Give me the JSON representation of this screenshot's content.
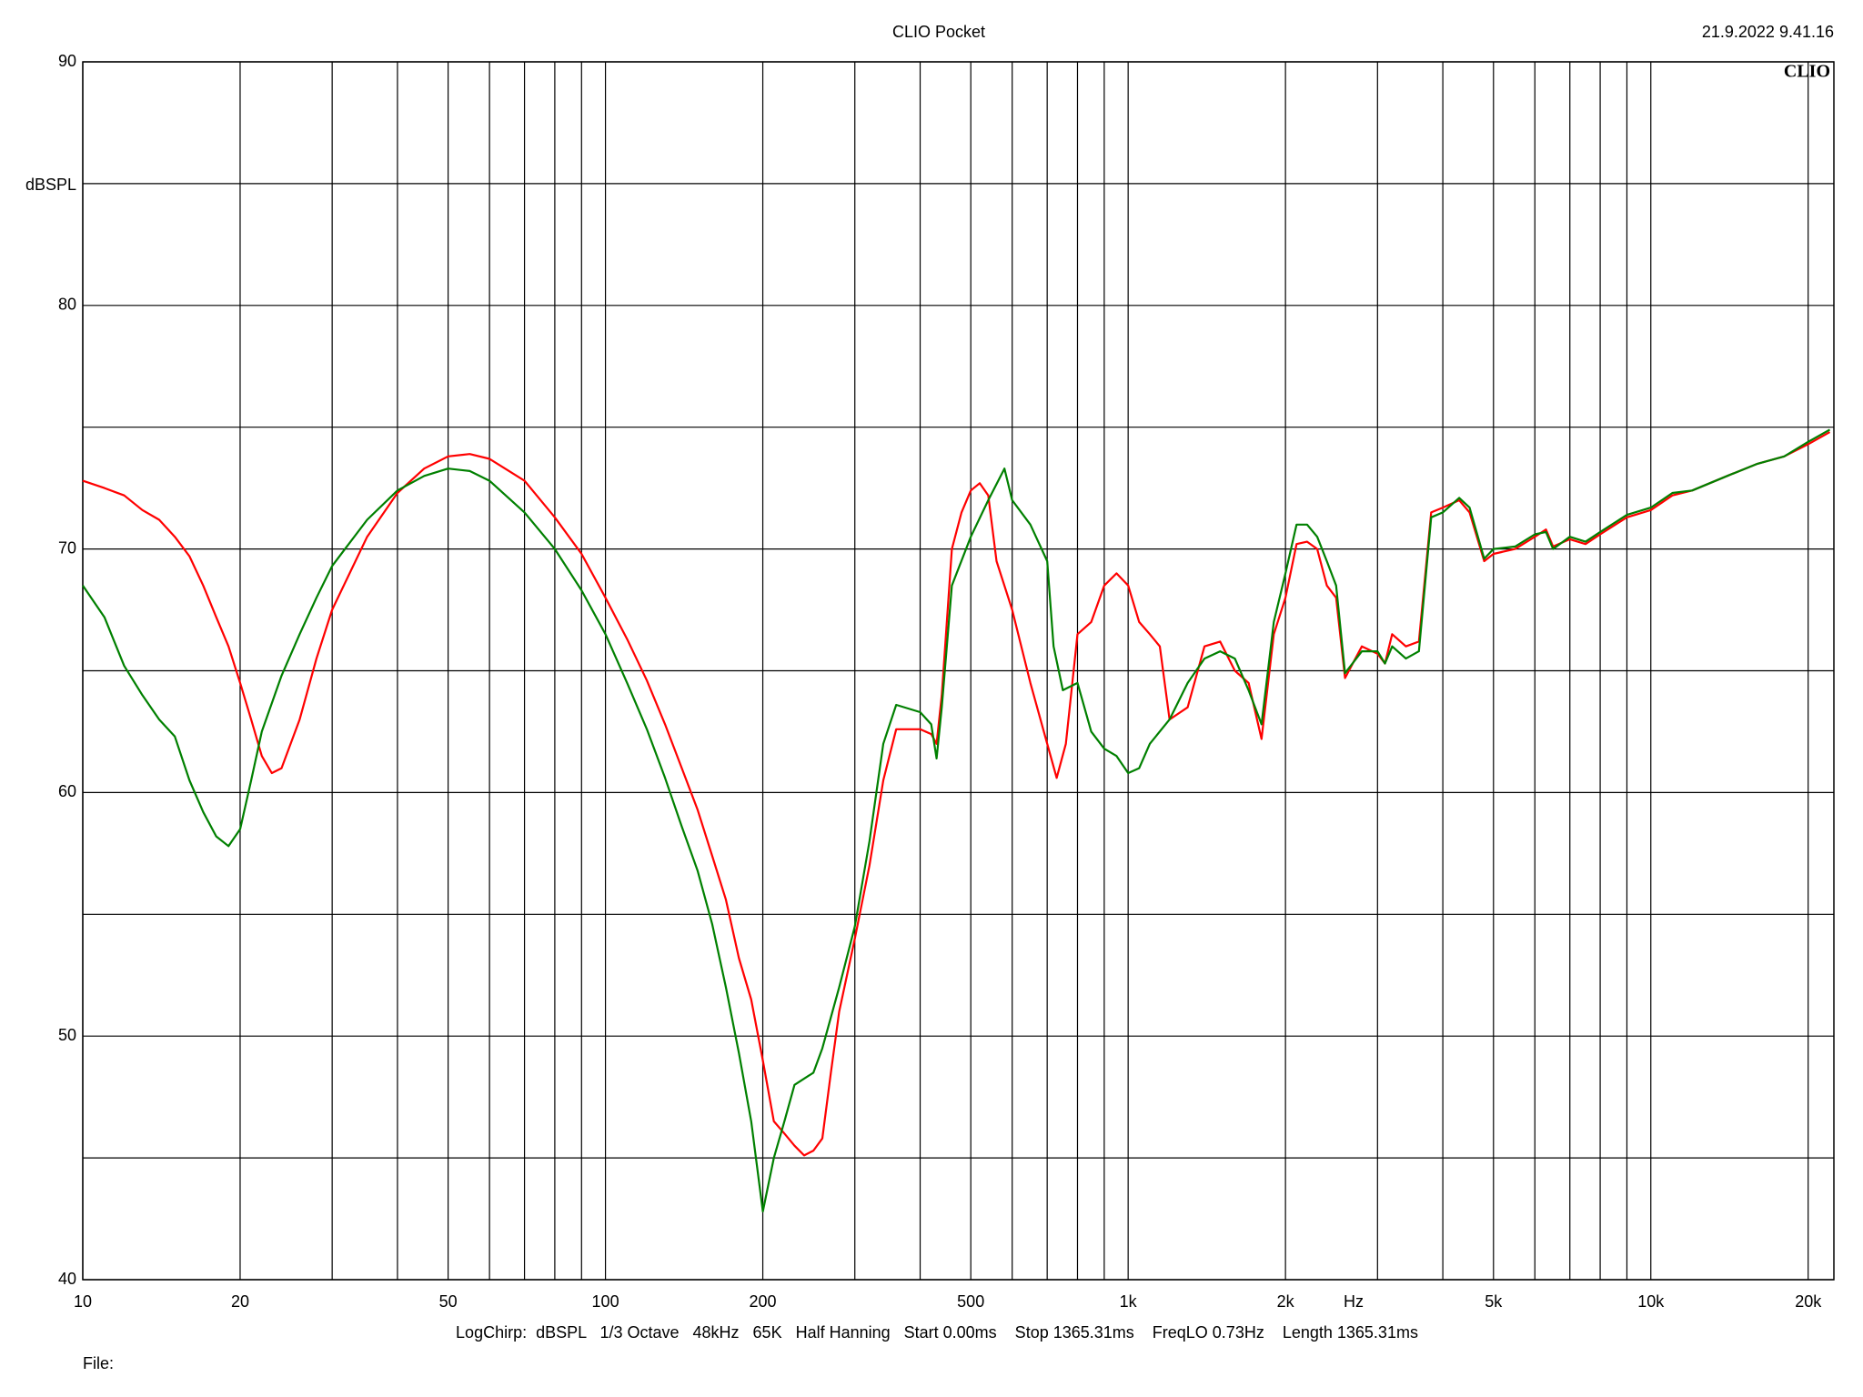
{
  "chart_data": {
    "type": "line",
    "title": "CLIO Pocket",
    "timestamp": "21.9.2022 9.41.16",
    "logo": "CLIO",
    "x_label": "Hz",
    "y_label": "dBSPL",
    "footer": "LogChirp:  dBSPL   1/3 Octave   48kHz   65K   Half Hanning   Start 0.00ms    Stop 1365.31ms    FreqLO 0.73Hz    Length 1365.31ms",
    "file_label": "File:",
    "xscale": "log",
    "grid": true,
    "xlim": [
      10,
      22400
    ],
    "ylim": [
      40,
      90
    ],
    "xticks": [
      10,
      20,
      50,
      100,
      200,
      500,
      {
        "value": 1000,
        "label": "1k"
      },
      {
        "value": 2000,
        "label": "2k"
      },
      {
        "value": 5000,
        "label": "5k"
      },
      {
        "value": 10000,
        "label": "10k"
      },
      {
        "value": 20000,
        "label": "20k"
      }
    ],
    "xgrid_minor": [
      30,
      40,
      60,
      70,
      80,
      90,
      300,
      400,
      600,
      700,
      800,
      900,
      3000,
      4000,
      6000,
      7000,
      8000,
      9000
    ],
    "yticks": [
      40,
      50,
      60,
      70,
      80,
      90
    ],
    "ygrid_minor": [
      45,
      55,
      65,
      75,
      85
    ],
    "series": [
      {
        "name": "Red",
        "color": "#ff0000",
        "x": [
          10,
          11,
          12,
          13,
          14,
          15,
          16,
          17,
          18,
          19,
          20,
          21,
          22,
          23,
          24,
          26,
          28,
          30,
          35,
          40,
          45,
          50,
          55,
          60,
          70,
          80,
          90,
          100,
          110,
          120,
          130,
          140,
          150,
          160,
          170,
          180,
          190,
          200,
          210,
          220,
          230,
          240,
          250,
          260,
          270,
          280,
          300,
          320,
          340,
          360,
          400,
          420,
          430,
          440,
          460,
          480,
          500,
          520,
          540,
          560,
          600,
          650,
          700,
          730,
          760,
          800,
          850,
          900,
          950,
          1000,
          1050,
          1100,
          1150,
          1200,
          1300,
          1400,
          1500,
          1600,
          1700,
          1800,
          1900,
          2000,
          2100,
          2200,
          2300,
          2400,
          2500,
          2600,
          2800,
          3000,
          3100,
          3200,
          3400,
          3600,
          3800,
          4000,
          4300,
          4500,
          4800,
          5000,
          5500,
          6000,
          6300,
          6500,
          7000,
          7500,
          8000,
          9000,
          10000,
          11000,
          12000,
          14000,
          16000,
          18000,
          20000,
          22000
        ],
        "values": [
          72.8,
          72.5,
          72.2,
          71.6,
          71.2,
          70.5,
          69.7,
          68.5,
          67.2,
          66.0,
          64.5,
          63.0,
          61.5,
          60.8,
          61.0,
          63.0,
          65.5,
          67.5,
          70.5,
          72.3,
          73.3,
          73.8,
          73.9,
          73.7,
          72.8,
          71.3,
          69.8,
          68.0,
          66.3,
          64.6,
          62.8,
          61.0,
          59.3,
          57.4,
          55.6,
          53.2,
          51.5,
          49.0,
          46.5,
          46.0,
          45.5,
          45.1,
          45.3,
          45.8,
          48.5,
          51.0,
          54.0,
          57.0,
          60.5,
          62.6,
          62.6,
          62.4,
          62.0,
          64.0,
          70.0,
          71.5,
          72.4,
          72.7,
          72.2,
          69.5,
          67.5,
          64.5,
          62.0,
          60.6,
          62.0,
          66.5,
          67.0,
          68.5,
          69.0,
          68.5,
          67.0,
          66.5,
          66.0,
          63.0,
          63.5,
          66.0,
          66.2,
          65.0,
          64.5,
          62.2,
          66.5,
          68.0,
          70.2,
          70.3,
          70.0,
          68.5,
          68.0,
          64.7,
          66.0,
          65.7,
          65.3,
          66.5,
          66.0,
          66.2,
          71.5,
          71.7,
          72.0,
          71.5,
          69.5,
          69.8,
          70.0,
          70.5,
          70.8,
          70.1,
          70.4,
          70.2,
          70.6,
          71.3,
          71.6,
          72.2,
          72.4,
          73.0,
          73.5,
          73.8,
          74.3,
          74.8
        ]
      },
      {
        "name": "Green",
        "color": "#008000",
        "x": [
          10,
          11,
          12,
          13,
          14,
          15,
          16,
          17,
          18,
          19,
          20,
          21,
          22,
          24,
          26,
          28,
          30,
          35,
          40,
          45,
          50,
          55,
          60,
          70,
          80,
          90,
          100,
          110,
          120,
          130,
          140,
          150,
          160,
          170,
          180,
          190,
          200,
          210,
          220,
          230,
          250,
          260,
          280,
          300,
          320,
          340,
          360,
          400,
          420,
          430,
          440,
          460,
          500,
          540,
          580,
          600,
          650,
          700,
          720,
          750,
          800,
          850,
          900,
          950,
          1000,
          1050,
          1100,
          1200,
          1300,
          1400,
          1500,
          1600,
          1700,
          1800,
          1900,
          2000,
          2100,
          2200,
          2300,
          2400,
          2500,
          2600,
          2800,
          3000,
          3100,
          3200,
          3400,
          3600,
          3800,
          4000,
          4300,
          4500,
          4800,
          5000,
          5500,
          6000,
          6300,
          6500,
          7000,
          7500,
          8000,
          9000,
          10000,
          11000,
          12000,
          14000,
          16000,
          18000,
          20000,
          22000
        ],
        "values": [
          68.5,
          67.2,
          65.2,
          64.0,
          63.0,
          62.3,
          60.5,
          59.2,
          58.2,
          57.8,
          58.5,
          60.5,
          62.5,
          64.8,
          66.5,
          68.0,
          69.3,
          71.2,
          72.4,
          73.0,
          73.3,
          73.2,
          72.8,
          71.5,
          70.0,
          68.3,
          66.5,
          64.5,
          62.6,
          60.6,
          58.6,
          56.8,
          54.6,
          52.0,
          49.3,
          46.5,
          42.8,
          45.0,
          46.5,
          48.0,
          48.5,
          49.5,
          52.0,
          54.5,
          58.0,
          62.0,
          63.6,
          63.3,
          62.8,
          61.4,
          63.5,
          68.5,
          70.5,
          72.0,
          73.3,
          72.0,
          71.0,
          69.5,
          66.0,
          64.2,
          64.5,
          62.5,
          61.8,
          61.5,
          60.8,
          61.0,
          62.0,
          63.0,
          64.5,
          65.5,
          65.8,
          65.5,
          64.2,
          62.8,
          67.0,
          69.0,
          71.0,
          71.0,
          70.5,
          69.5,
          68.5,
          64.9,
          65.8,
          65.8,
          65.3,
          66.0,
          65.5,
          65.8,
          71.3,
          71.5,
          72.1,
          71.7,
          69.6,
          70.0,
          70.1,
          70.6,
          70.7,
          70.0,
          70.5,
          70.3,
          70.7,
          71.4,
          71.7,
          72.3,
          72.4,
          73.0,
          73.5,
          73.8,
          74.4,
          74.9
        ]
      }
    ]
  }
}
